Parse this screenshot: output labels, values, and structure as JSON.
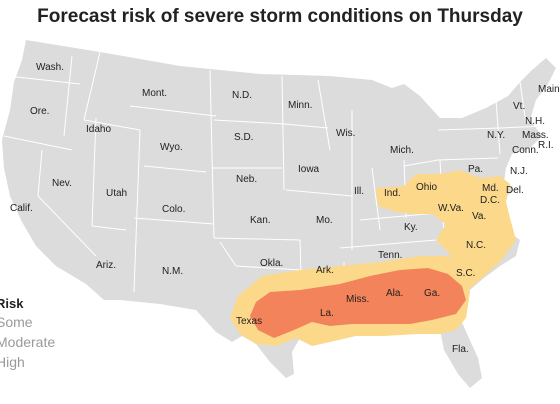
{
  "title": "Forecast risk of severe storm conditions on Thursday",
  "legend": {
    "title": "Risk",
    "items": [
      {
        "label": "Some",
        "color": "#fcd98a"
      },
      {
        "label": "Moderate",
        "color": "#f7a957"
      },
      {
        "label": "High",
        "color": "#f2835a"
      }
    ]
  },
  "colors": {
    "land": "#dcdcdc",
    "state_border": "#ffffff",
    "some_risk": "#fcd98a",
    "high_risk": "#f2835a"
  },
  "states": {
    "wash": "Wash.",
    "ore": "Ore.",
    "idaho": "Idaho",
    "mont": "Mont.",
    "nd": "N.D.",
    "minn": "Minn.",
    "wis": "Wis.",
    "mich": "Mich.",
    "ny": "N.Y.",
    "vt": "Vt.",
    "nh": "N.H.",
    "mass": "Mass.",
    "ri": "R.I.",
    "conn": "Conn.",
    "maine": "Maine",
    "calif": "Calif.",
    "nev": "Nev.",
    "utah": "Utah",
    "wyo": "Wyo.",
    "sd": "S.D.",
    "neb": "Neb.",
    "iowa": "Iowa",
    "ill": "Ill.",
    "ind": "Ind.",
    "ohio": "Ohio",
    "pa": "Pa.",
    "nj": "N.J.",
    "md": "Md.",
    "del": "Del.",
    "dc": "D.C.",
    "wva": "W.Va.",
    "va": "Va.",
    "colo": "Colo.",
    "kan": "Kan.",
    "mo": "Mo.",
    "ky": "Ky.",
    "nc": "N.C.",
    "ariz": "Ariz.",
    "nm": "N.M.",
    "okla": "Okla.",
    "ark": "Ark.",
    "tenn": "Tenn.",
    "sc": "S.C.",
    "texas": "Texas",
    "la": "La.",
    "miss": "Miss.",
    "ala": "Ala.",
    "ga": "Ga.",
    "fla": "Fla."
  }
}
